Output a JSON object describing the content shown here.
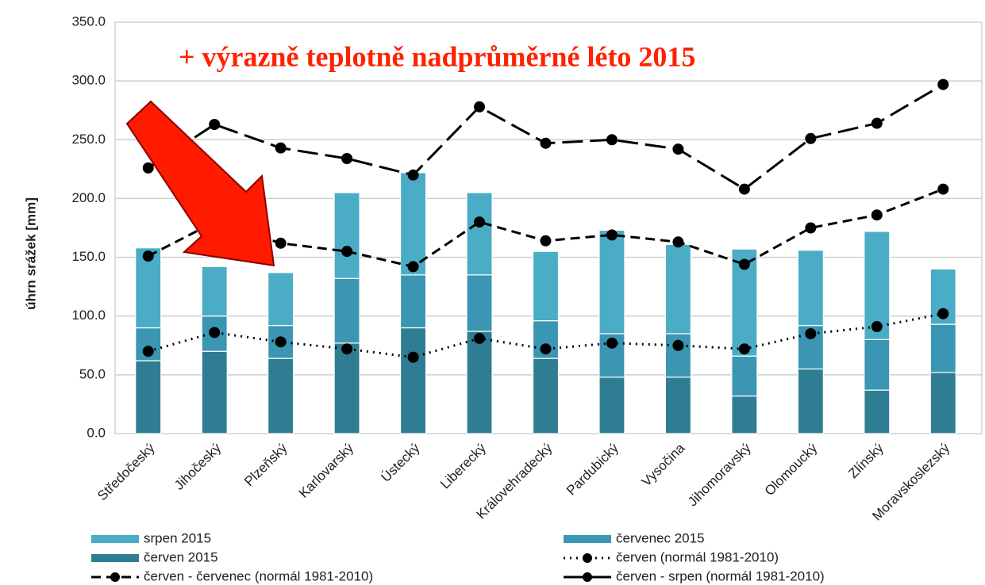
{
  "chart_data": {
    "type": "bar",
    "annotation": "+ výrazně teplotně nadprůměrné léto 2015",
    "y_label": "úhrn srážek [mm]",
    "categories": [
      "Středočeský",
      "Jihočeský",
      "Plzeňský",
      "Karlovarský",
      "Ústecký",
      "Liberecký",
      "Královehradecký",
      "Pardubický",
      "Vysočina",
      "Jihomoravský",
      "Olomoucký",
      "Zlínský",
      "Moravskoslezský"
    ],
    "series": [
      {
        "name": "srpen 2015",
        "kind": "bar",
        "color": "#4bacc6",
        "values": [
          68,
          42,
          45,
          73,
          87,
          70,
          59,
          88,
          76,
          91,
          64,
          92,
          47
        ]
      },
      {
        "name": "červenec 2015",
        "kind": "bar",
        "color": "#3a96b2",
        "values": [
          28,
          30,
          28,
          55,
          45,
          48,
          32,
          37,
          37,
          34,
          37,
          43,
          41
        ]
      },
      {
        "name": "červen 2015",
        "kind": "bar",
        "color": "#2f7d93",
        "values": [
          62,
          70,
          64,
          77,
          90,
          87,
          64,
          48,
          48,
          32,
          55,
          37,
          52
        ]
      },
      {
        "name": "červen (normál 1981-2010)",
        "kind": "line",
        "dash": "dotted",
        "color": "#000000",
        "values": [
          70,
          86,
          78,
          72,
          65,
          81,
          72,
          77,
          75,
          72,
          85,
          91,
          102
        ]
      },
      {
        "name": "červen - červenec (normál 1981-2010)",
        "kind": "line",
        "dash": "short",
        "color": "#000000",
        "values": [
          151,
          180,
          162,
          155,
          142,
          180,
          164,
          169,
          163,
          144,
          175,
          186,
          208
        ]
      },
      {
        "name": "červen - srpen (normál 1981-2010)",
        "kind": "line",
        "dash": "long",
        "color": "#000000",
        "values": [
          226,
          263,
          243,
          234,
          220,
          278,
          247,
          250,
          242,
          208,
          251,
          264,
          297
        ]
      }
    ],
    "ylim": [
      0,
      350
    ],
    "yticks": [
      {
        "value": 0,
        "label": "0.0"
      },
      {
        "value": 50,
        "label": "50.0"
      },
      {
        "value": 100,
        "label": "100.0"
      },
      {
        "value": 150,
        "label": "150.0"
      },
      {
        "value": 200,
        "label": "200.0"
      },
      {
        "value": 250,
        "label": "250.0"
      },
      {
        "value": 300,
        "label": "300.0"
      },
      {
        "value": 350,
        "label": "350.0"
      }
    ],
    "grid": true
  }
}
